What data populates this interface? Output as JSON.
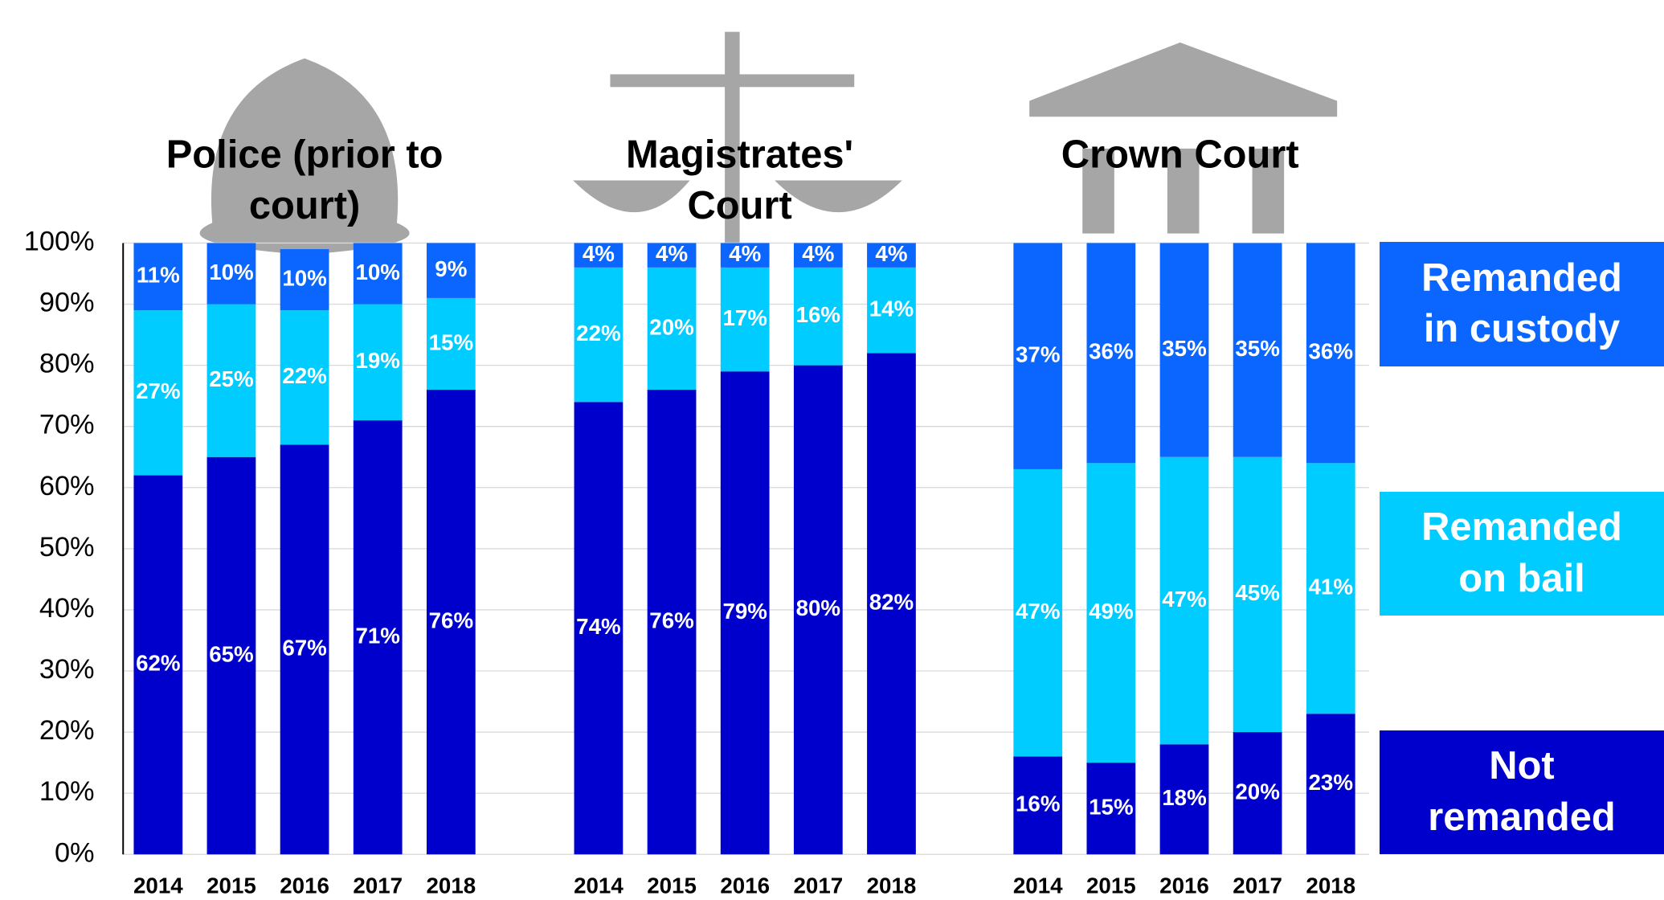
{
  "chart_data": {
    "type": "bar",
    "stacked": true,
    "series": [
      {
        "name": "Not remanded",
        "color": "#0000cc"
      },
      {
        "name": "Remanded on bail",
        "color": "#00ccff"
      },
      {
        "name": "Remanded in custody",
        "color": "#0a66ff"
      }
    ],
    "panels": [
      {
        "title": "Police (prior to court)",
        "categories": [
          "2014",
          "2015",
          "2016",
          "2017",
          "2018"
        ],
        "values": [
          [
            62,
            65,
            67,
            71,
            76
          ],
          [
            27,
            25,
            22,
            19,
            15
          ],
          [
            11,
            10,
            10,
            10,
            9
          ]
        ]
      },
      {
        "title": "Magistrates' Court",
        "categories": [
          "2014",
          "2015",
          "2016",
          "2017",
          "2018"
        ],
        "values": [
          [
            74,
            76,
            79,
            80,
            82
          ],
          [
            22,
            20,
            17,
            16,
            14
          ],
          [
            4,
            4,
            4,
            4,
            4
          ]
        ]
      },
      {
        "title": "Crown Court",
        "categories": [
          "2014",
          "2015",
          "2016",
          "2017",
          "2018"
        ],
        "values": [
          [
            16,
            15,
            18,
            20,
            23
          ],
          [
            47,
            49,
            47,
            45,
            41
          ],
          [
            37,
            36,
            35,
            35,
            36
          ]
        ]
      }
    ],
    "ylim": [
      0,
      100
    ],
    "yticks": [
      {
        "value": 0,
        "label": "0%"
      },
      {
        "value": 10,
        "label": "10%"
      },
      {
        "value": 20,
        "label": "20%"
      },
      {
        "value": 30,
        "label": "30%"
      },
      {
        "value": 40,
        "label": "40%"
      },
      {
        "value": 50,
        "label": "50%"
      },
      {
        "value": 60,
        "label": "60%"
      },
      {
        "value": 70,
        "label": "70%"
      },
      {
        "value": 80,
        "label": "80%"
      },
      {
        "value": 90,
        "label": "90%"
      },
      {
        "value": 100,
        "label": "100%"
      }
    ],
    "value_labels": [
      [
        [
          "62%",
          "65%",
          "67%",
          "71%",
          "76%"
        ],
        [
          "27%",
          "25%",
          "22%",
          "19%",
          "15%"
        ],
        [
          "11%",
          "10%",
          "10%",
          "10%",
          "9%"
        ]
      ],
      [
        [
          "74%",
          "76%",
          "79%",
          "80%",
          "82%"
        ],
        [
          "22%",
          "20%",
          "17%",
          "16%",
          "14%"
        ],
        [
          "4%",
          "4%",
          "4%",
          "4%",
          "4%"
        ]
      ],
      [
        [
          "16%",
          "15%",
          "18%",
          "20%",
          "23%"
        ],
        [
          "47%",
          "49%",
          "47%",
          "45%",
          "41%"
        ],
        [
          "37%",
          "36%",
          "35%",
          "35%",
          "36%"
        ]
      ]
    ],
    "grid": true
  }
}
